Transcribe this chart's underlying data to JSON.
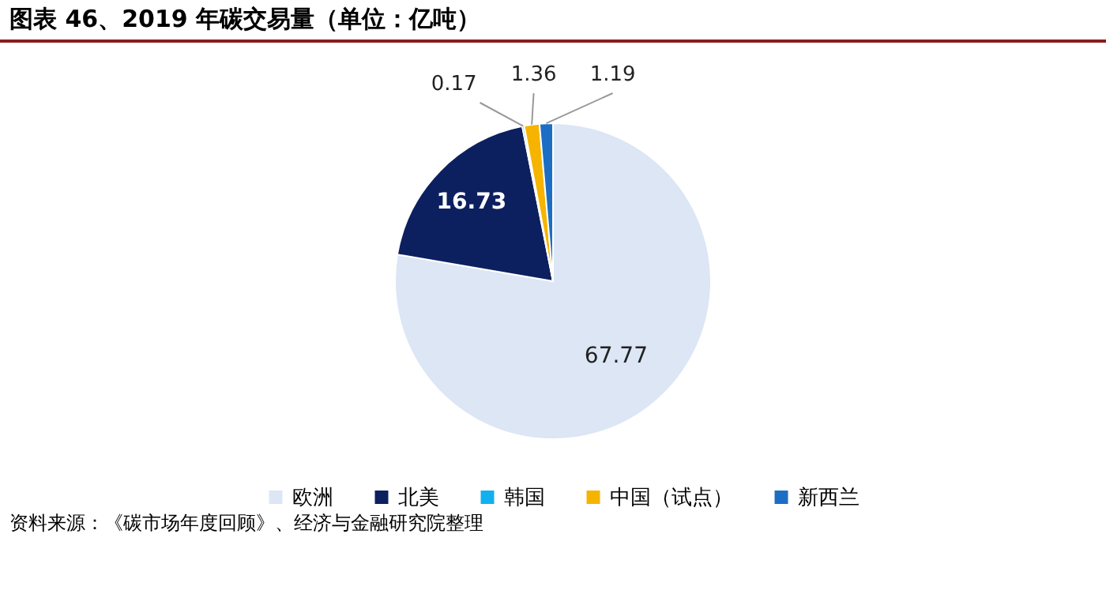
{
  "chart_data": {
    "type": "pie",
    "title": "图表 46、2019 年碳交易量（单位：亿吨）",
    "categories": [
      "欧洲",
      "北美",
      "韩国",
      "中国（试点）",
      "新西兰"
    ],
    "values": [
      67.77,
      16.73,
      0.17,
      1.36,
      1.19
    ],
    "colors": [
      "#dce6f4",
      "#0c2060",
      "#12b0ee",
      "#f6b400",
      "#1c6ec4"
    ],
    "data_labels": true,
    "legend": "bottom",
    "annotations": [
      "资料来源：《碳市场年度回顾》、经济与金融研究院整理"
    ]
  }
}
